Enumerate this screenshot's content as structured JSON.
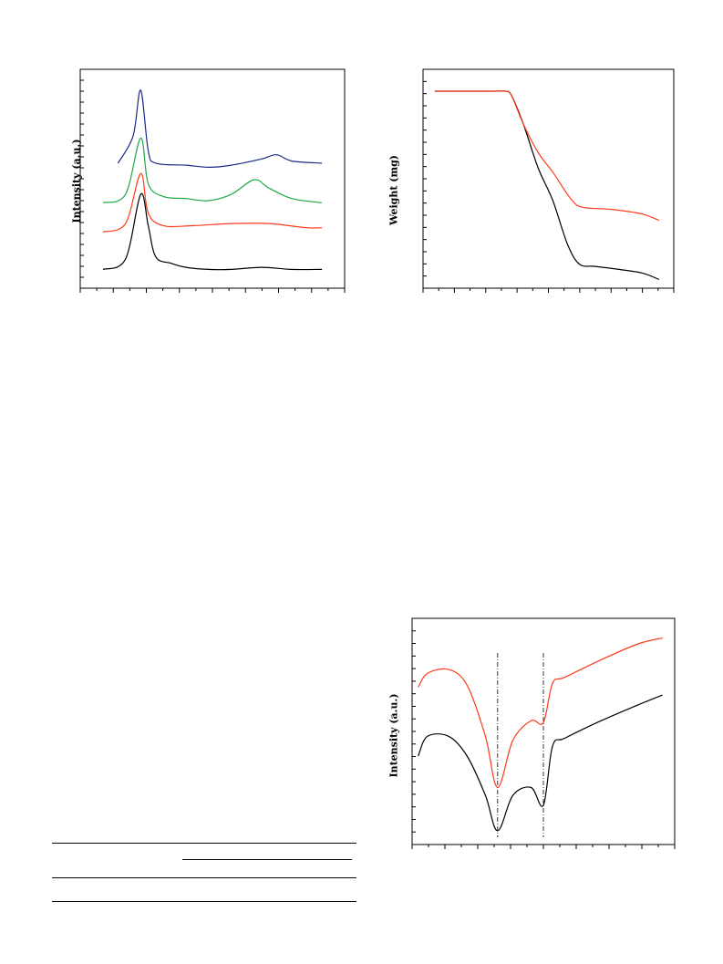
{
  "figures": {
    "xrd": {
      "ylabel": "Intensity (a.u.)",
      "chart_data": {
        "type": "line",
        "xlabel": "",
        "ylabel": "Intensity (a.u.)",
        "grid": false,
        "legend": "none",
        "series": [
          {
            "color": "#1a2a8a",
            "points": [
              [
                5,
                0.6
              ],
              [
                7,
                0.73
              ],
              [
                8,
                0.95
              ],
              [
                9,
                0.66
              ],
              [
                10,
                0.6
              ],
              [
                14,
                0.59
              ],
              [
                17,
                0.58
              ],
              [
                20,
                0.59
              ],
              [
                24,
                0.62
              ],
              [
                26,
                0.64
              ],
              [
                28,
                0.61
              ],
              [
                32,
                0.6
              ]
            ]
          },
          {
            "color": "#22a84a",
            "points": [
              [
                3,
                0.41
              ],
              [
                6,
                0.45
              ],
              [
                8,
                0.72
              ],
              [
                9,
                0.5
              ],
              [
                11,
                0.44
              ],
              [
                14,
                0.43
              ],
              [
                17,
                0.42
              ],
              [
                20,
                0.45
              ],
              [
                23,
                0.52
              ],
              [
                25,
                0.48
              ],
              [
                28,
                0.43
              ],
              [
                32,
                0.41
              ]
            ]
          },
          {
            "color": "#ff3a1a",
            "points": [
              [
                3,
                0.27
              ],
              [
                6,
                0.31
              ],
              [
                8,
                0.55
              ],
              [
                9,
                0.36
              ],
              [
                11,
                0.3
              ],
              [
                15,
                0.3
              ],
              [
                20,
                0.31
              ],
              [
                25,
                0.31
              ],
              [
                30,
                0.29
              ],
              [
                32,
                0.29
              ]
            ]
          },
          {
            "color": "#000000",
            "points": [
              [
                3,
                0.09
              ],
              [
                6,
                0.14
              ],
              [
                8,
                0.45
              ],
              [
                9,
                0.3
              ],
              [
                10,
                0.15
              ],
              [
                12,
                0.12
              ],
              [
                14,
                0.1
              ],
              [
                17,
                0.09
              ],
              [
                20,
                0.09
              ],
              [
                24,
                0.1
              ],
              [
                28,
                0.09
              ],
              [
                32,
                0.09
              ]
            ]
          }
        ]
      }
    },
    "tga": {
      "ylabel": "Weight (mg)",
      "chart_data": {
        "type": "line",
        "xlabel": "",
        "ylabel": "Weight (mg)",
        "grid": false,
        "legend": "none",
        "series": [
          {
            "color": "#000000",
            "points": [
              [
                0,
                0.9
              ],
              [
                10,
                0.9
              ],
              [
                20,
                0.9
              ],
              [
                24,
                0.9
              ],
              [
                26,
                0.88
              ],
              [
                30,
                0.75
              ],
              [
                35,
                0.55
              ],
              [
                40,
                0.4
              ],
              [
                45,
                0.2
              ],
              [
                49,
                0.11
              ],
              [
                54,
                0.1
              ],
              [
                60,
                0.09
              ],
              [
                70,
                0.07
              ],
              [
                76,
                0.04
              ]
            ]
          },
          {
            "color": "#ff3a1a",
            "points": [
              [
                0,
                0.9
              ],
              [
                10,
                0.9
              ],
              [
                20,
                0.9
              ],
              [
                24,
                0.9
              ],
              [
                26,
                0.88
              ],
              [
                30,
                0.75
              ],
              [
                35,
                0.62
              ],
              [
                40,
                0.53
              ],
              [
                46,
                0.41
              ],
              [
                50,
                0.37
              ],
              [
                60,
                0.36
              ],
              [
                70,
                0.34
              ],
              [
                76,
                0.31
              ]
            ]
          }
        ]
      }
    },
    "ftir": {
      "ylabel": "Intensity (a.u.)",
      "chart_data": {
        "type": "line",
        "xlabel": "",
        "ylabel": "Intensity (a.u.)",
        "grid": false,
        "legend": "none",
        "series": [
          {
            "color": "#000000",
            "points": [
              [
                0,
                0.4
              ],
              [
                3,
                0.5
              ],
              [
                10,
                0.5
              ],
              [
                16,
                0.4
              ],
              [
                22,
                0.2
              ],
              [
                26,
                0.02
              ],
              [
                31,
                0.2
              ],
              [
                37,
                0.24
              ],
              [
                41,
                0.15
              ],
              [
                44,
                0.45
              ],
              [
                48,
                0.49
              ],
              [
                60,
                0.58
              ],
              [
                72,
                0.66
              ],
              [
                80,
                0.71
              ]
            ]
          },
          {
            "color": "#ff3a1a",
            "points": [
              [
                0,
                0.75
              ],
              [
                3,
                0.82
              ],
              [
                10,
                0.84
              ],
              [
                16,
                0.76
              ],
              [
                22,
                0.5
              ],
              [
                26,
                0.24
              ],
              [
                31,
                0.48
              ],
              [
                37,
                0.58
              ],
              [
                41,
                0.57
              ],
              [
                44,
                0.77
              ],
              [
                48,
                0.8
              ],
              [
                60,
                0.89
              ],
              [
                72,
                0.97
              ],
              [
                80,
                1.0
              ]
            ]
          }
        ],
        "reference_lines_x": [
          26,
          41
        ]
      }
    }
  },
  "table": {
    "rules": 4
  }
}
